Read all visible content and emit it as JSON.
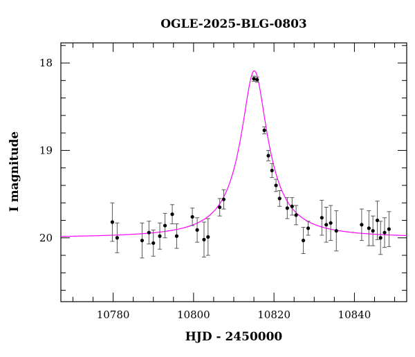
{
  "chart_data": {
    "type": "scatter",
    "title": "OGLE-2025-BLG-0803",
    "xlabel": "HJD - 2450000",
    "ylabel": "I magnitude",
    "xlim": [
      10767,
      10853
    ],
    "ylim": [
      20.73,
      17.77
    ],
    "y_inverted": true,
    "grid": false,
    "x_ticks": [
      10780,
      10800,
      10820,
      10840
    ],
    "x_tick_labels": [
      "10780",
      "10800",
      "10820",
      "10840"
    ],
    "x_minor_step": 5,
    "y_ticks": [
      18,
      19,
      20
    ],
    "y_tick_labels": [
      "18",
      "19",
      "20"
    ],
    "y_minor_step": 0.2,
    "point_color": "#000000",
    "model_color": "#ff00ff",
    "model": {
      "t0": 10815.1,
      "peak_mag": 18.09,
      "baseline_mag": 20.0,
      "half_width": 2.7
    },
    "series": [
      {
        "kind": "points",
        "x": [
          10779.8,
          10781.0,
          10787.2,
          10788.9,
          10790.0,
          10791.6,
          10792.9,
          10794.7,
          10795.8,
          10799.7,
          10800.9,
          10802.6,
          10803.6,
          10806.5,
          10807.5,
          10815.0,
          10815.8,
          10817.6,
          10818.6,
          10819.5,
          10820.5,
          10821.4,
          10823.3,
          10824.5,
          10825.5,
          10827.3,
          10828.5,
          10831.9,
          10833.0,
          10834.1,
          10835.5,
          10841.8,
          10843.6,
          10844.6,
          10845.7,
          10846.5,
          10847.5,
          10848.6
        ],
        "y": [
          19.82,
          20.0,
          20.03,
          19.94,
          20.06,
          19.98,
          19.86,
          19.73,
          19.98,
          19.76,
          19.91,
          20.02,
          19.99,
          19.65,
          19.56,
          18.18,
          18.19,
          18.77,
          19.06,
          19.23,
          19.4,
          19.55,
          19.66,
          19.64,
          19.74,
          20.03,
          19.89,
          19.77,
          19.85,
          19.83,
          19.92,
          19.85,
          19.89,
          19.92,
          19.8,
          20.0,
          19.94,
          19.9
        ],
        "err": [
          0.22,
          0.17,
          0.2,
          0.13,
          0.15,
          0.15,
          0.14,
          0.11,
          0.14,
          0.1,
          0.14,
          0.2,
          0.21,
          0.1,
          0.11,
          0.03,
          0.03,
          0.04,
          0.06,
          0.08,
          0.07,
          0.09,
          0.12,
          0.1,
          0.11,
          0.15,
          0.08,
          0.2,
          0.2,
          0.2,
          0.23,
          0.18,
          0.2,
          0.17,
          0.22,
          0.19,
          0.17,
          0.2
        ]
      },
      {
        "kind": "model_curve"
      }
    ]
  }
}
